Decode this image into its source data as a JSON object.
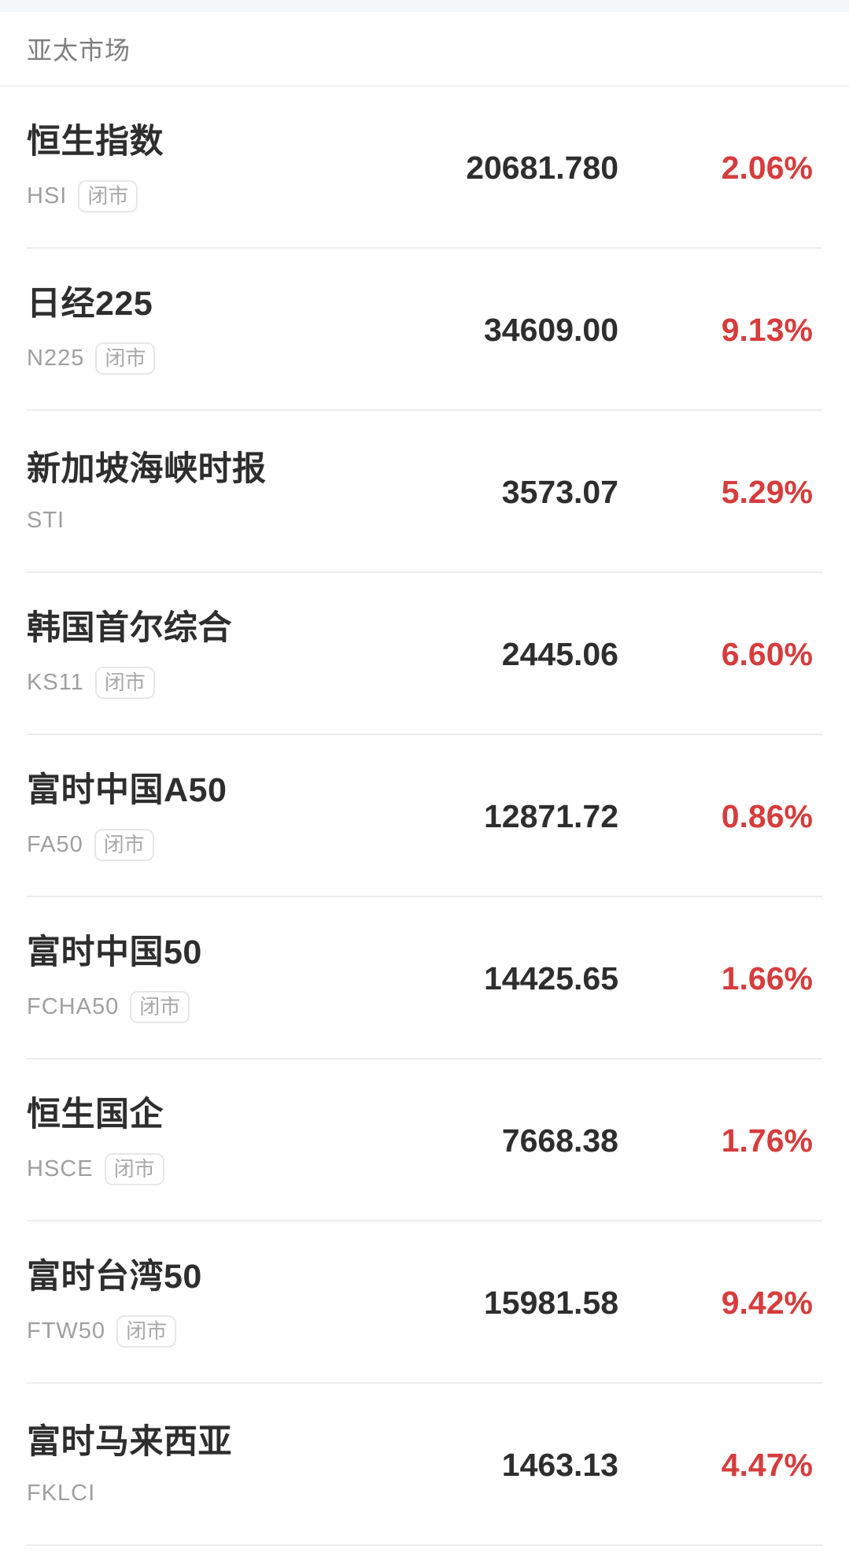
{
  "header": {
    "title": "亚太市场"
  },
  "colors": {
    "up": "#d73c3c",
    "text_primary": "#2e2e2e",
    "text_secondary": "#9f9f9f",
    "divider": "#ececec",
    "topbar_bg": "#f5f6f8",
    "header_title": "#7e7e7e"
  },
  "badge_label_closed": "闭市",
  "rows": [
    {
      "name": "恒生指数",
      "code": "HSI",
      "badge": "闭市",
      "value": "20681.780",
      "change_percent": "2.06%"
    },
    {
      "name": "日经225",
      "code": "N225",
      "badge": "闭市",
      "value": "34609.00",
      "change_percent": "9.13%"
    },
    {
      "name": "新加坡海峡时报",
      "code": "STI",
      "badge": null,
      "value": "3573.07",
      "change_percent": "5.29%"
    },
    {
      "name": "韩国首尔综合",
      "code": "KS11",
      "badge": "闭市",
      "value": "2445.06",
      "change_percent": "6.60%"
    },
    {
      "name": "富时中国A50",
      "code": "FA50",
      "badge": "闭市",
      "value": "12871.72",
      "change_percent": "0.86%"
    },
    {
      "name": "富时中国50",
      "code": "FCHA50",
      "badge": "闭市",
      "value": "14425.65",
      "change_percent": "1.66%"
    },
    {
      "name": "恒生国企",
      "code": "HSCE",
      "badge": "闭市",
      "value": "7668.38",
      "change_percent": "1.76%"
    },
    {
      "name": "富时台湾50",
      "code": "FTW50",
      "badge": "闭市",
      "value": "15981.58",
      "change_percent": "9.42%"
    },
    {
      "name": "富时马来西亚",
      "code": "FKLCI",
      "badge": null,
      "value": "1463.13",
      "change_percent": "4.47%"
    }
  ]
}
